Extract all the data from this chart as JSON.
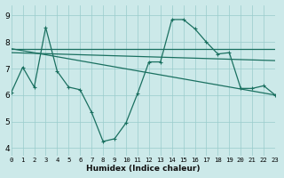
{
  "xlabel": "Humidex (Indice chaleur)",
  "bg_color": "#cce9e9",
  "grid_color": "#99cccc",
  "line_color": "#1a7060",
  "xlim": [
    0,
    23
  ],
  "ylim": [
    3.7,
    9.4
  ],
  "yticks": [
    4,
    5,
    6,
    7,
    8,
    9
  ],
  "xticks": [
    0,
    1,
    2,
    3,
    4,
    5,
    6,
    7,
    8,
    9,
    10,
    11,
    12,
    13,
    14,
    15,
    16,
    17,
    18,
    19,
    20,
    21,
    22,
    23
  ],
  "line1_x": [
    0,
    1,
    2,
    3,
    4,
    5,
    6,
    7,
    8,
    9,
    10,
    11,
    12,
    13,
    14,
    15,
    16,
    17,
    18,
    19,
    20,
    21,
    22,
    23
  ],
  "line1_y": [
    6.1,
    7.05,
    6.3,
    8.55,
    6.9,
    6.3,
    6.2,
    5.35,
    4.25,
    4.35,
    4.95,
    6.05,
    7.25,
    7.25,
    8.85,
    8.85,
    8.5,
    8.0,
    7.55,
    7.6,
    6.25,
    6.25,
    6.35,
    6.0
  ],
  "line2_x": [
    0,
    14,
    23
  ],
  "line2_y": [
    7.75,
    7.75,
    7.75
  ],
  "line3_x": [
    0,
    23
  ],
  "line3_y": [
    7.75,
    6.0
  ],
  "line4_x": [
    0,
    23
  ],
  "line4_y": [
    7.6,
    7.3
  ]
}
